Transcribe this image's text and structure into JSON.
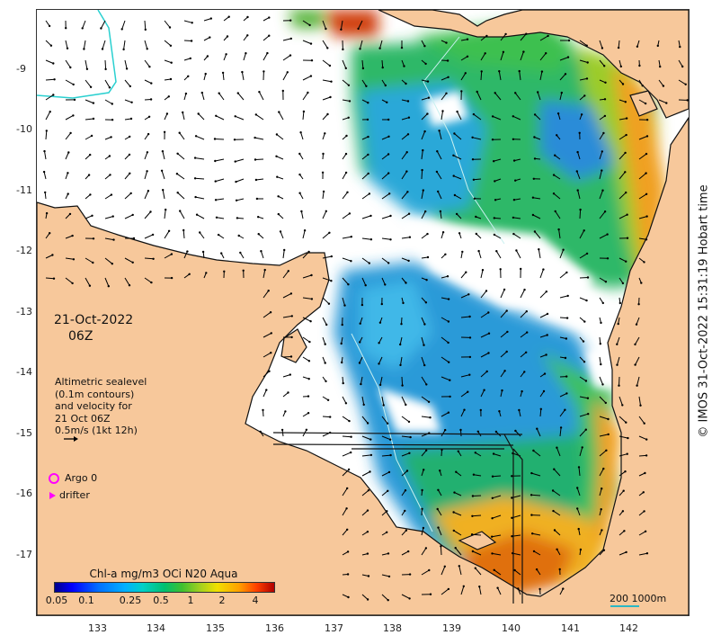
{
  "map": {
    "date": "21-Oct-2022",
    "hour": "06Z",
    "description_lines": [
      "Altimetric sealevel",
      "(0.1m contours)",
      "and velocity for",
      "21 Oct 06Z",
      "0.5m/s (1kt 12h)"
    ],
    "legend": {
      "argo_label": "Argo 0",
      "drifter_label": "drifter",
      "argo_color": "#ff00ff",
      "drifter_color": "#ff00ff"
    },
    "colorbar": {
      "title": "Chl-a mg/m3 OCi N20 Aqua",
      "tick_labels": [
        "0.05",
        "0.1",
        "0.25",
        "0.5",
        "1",
        "2",
        "4"
      ]
    },
    "scale": {
      "label": "200  1000m",
      "color": "#2ab7c4"
    },
    "credit": "© IMOS 31-Oct-2022 15:31:19 Hobart time",
    "lat_ticks": [
      "-9",
      "-10",
      "-11",
      "-12",
      "-13",
      "-14",
      "-15",
      "-16",
      "-17"
    ],
    "lon_ticks": [
      "133",
      "134",
      "135",
      "136",
      "137",
      "138",
      "139",
      "140",
      "141",
      "142"
    ],
    "colors": {
      "land": "#f7c89b",
      "no_data_ocean": "#ffffff",
      "coastline": "#111111",
      "arrows": "#000000"
    }
  }
}
